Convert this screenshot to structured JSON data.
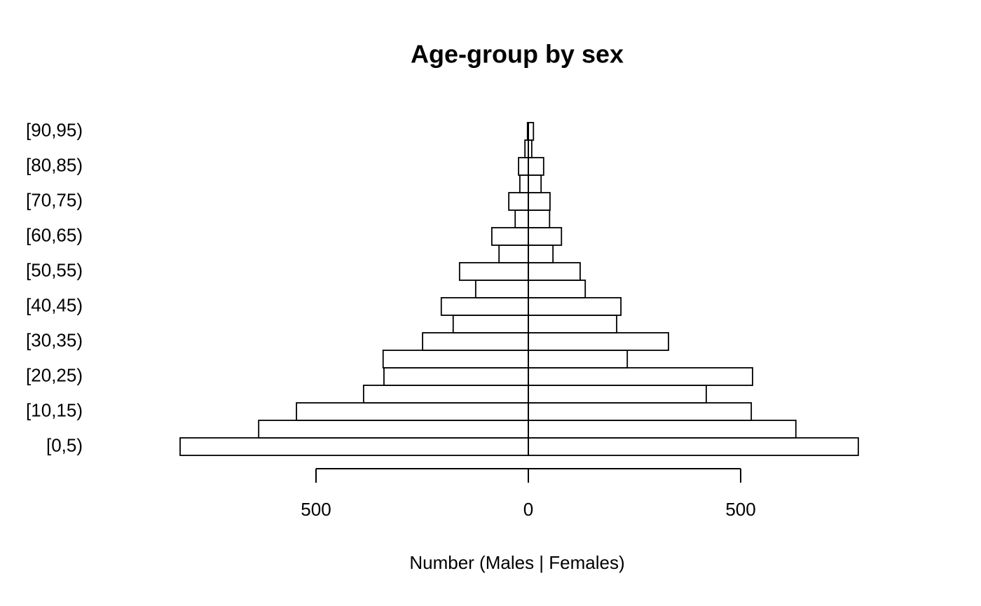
{
  "chart_data": {
    "type": "pyramid",
    "title": "Age-group by sex",
    "xlabel": "Number (Males | Females)",
    "categories": [
      "[0,5)",
      null,
      "[10,15)",
      null,
      "[20,25)",
      null,
      "[30,35)",
      null,
      "[40,45)",
      null,
      "[50,55)",
      null,
      "[60,65)",
      null,
      "[70,75)",
      null,
      "[80,85)",
      null,
      "[90,95)"
    ],
    "series": [
      {
        "color": "#ffffff",
        "values": [
          820,
          635,
          546,
          388,
          340,
          342,
          249,
          177,
          205,
          124,
          162,
          69,
          86,
          31,
          46,
          20,
          23,
          8,
          2
        ]
      },
      {
        "color": "#ffffff",
        "values": [
          777,
          630,
          525,
          419,
          528,
          233,
          330,
          208,
          218,
          134,
          122,
          58,
          78,
          50,
          51,
          30,
          36,
          8,
          12
        ]
      }
    ],
    "xlim": [
      -830,
      830
    ],
    "xticks": [
      {
        "value": -500,
        "label": "500"
      },
      0,
      500
    ]
  }
}
